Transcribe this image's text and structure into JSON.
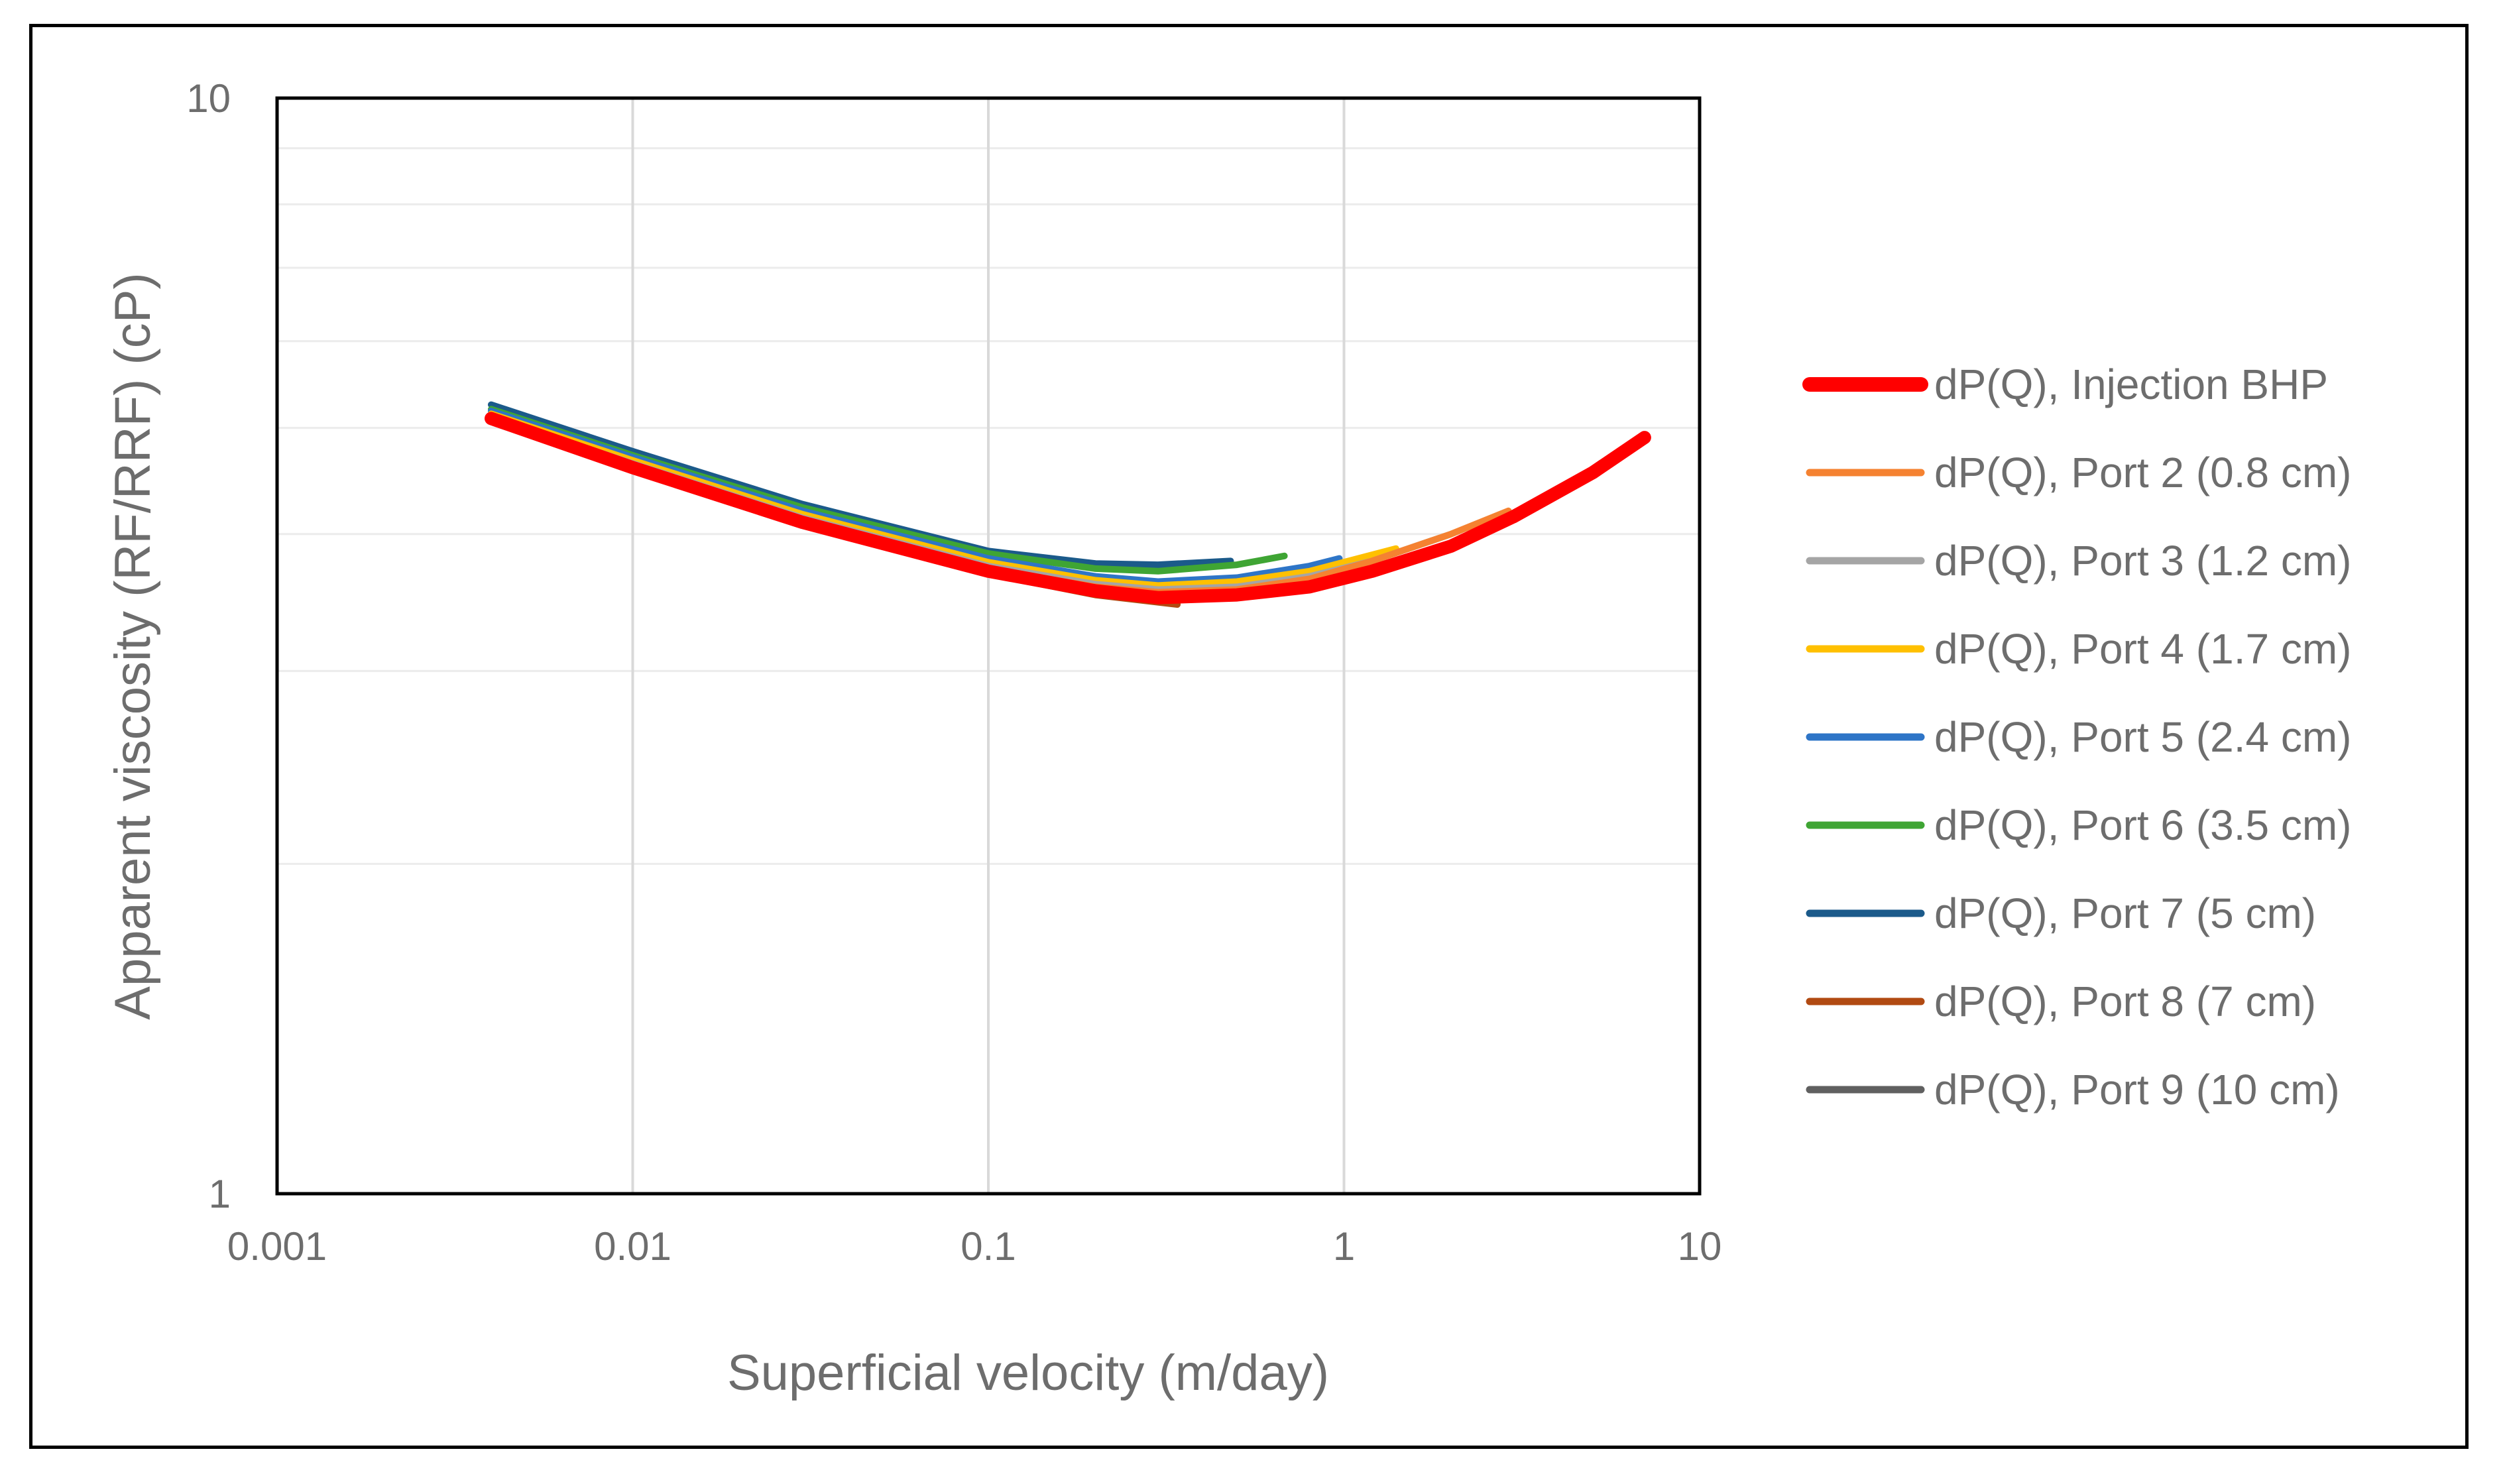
{
  "chart_data": {
    "type": "line",
    "title": "",
    "xlabel": "Superficial velocity (m/day)",
    "ylabel": "Apparent viscosity (RF/RRF) (cP)",
    "xscale": "log",
    "yscale": "log",
    "xlim": [
      0.001,
      10
    ],
    "ylim": [
      1,
      10
    ],
    "x_ticks": [
      0.001,
      0.01,
      0.1,
      1,
      10
    ],
    "x_tick_labels": [
      "0.001",
      "0.01",
      "0.1",
      "1",
      "10"
    ],
    "y_ticks": [
      1,
      10
    ],
    "y_tick_labels": [
      "1",
      "10"
    ],
    "y_minor_gridlines": [
      2,
      3,
      4,
      5,
      6,
      7,
      8,
      9
    ],
    "grid": true,
    "legend_position": "right",
    "series": [
      {
        "name": "dP(Q), Injection BHP",
        "color": "#ff0000",
        "width": "heavy",
        "x": [
          0.004,
          0.01,
          0.03,
          0.1,
          0.2,
          0.3,
          0.5,
          0.8,
          1.2,
          2,
          3,
          5,
          7
        ],
        "y": [
          5.1,
          4.6,
          4.1,
          3.7,
          3.55,
          3.5,
          3.52,
          3.58,
          3.7,
          3.9,
          4.15,
          4.55,
          4.9
        ]
      },
      {
        "name": "dP(Q), Port 2 (0.8 cm)",
        "color": "#f58231",
        "width": "normal",
        "x": [
          0.004,
          0.01,
          0.03,
          0.1,
          0.2,
          0.3,
          0.5,
          0.8,
          1.2,
          2,
          2.9
        ],
        "y": [
          5.1,
          4.62,
          4.12,
          3.72,
          3.58,
          3.54,
          3.56,
          3.64,
          3.78,
          4.0,
          4.2
        ]
      },
      {
        "name": "dP(Q), Port 3 (1.2 cm)",
        "color": "#a5a5a5",
        "width": "normal",
        "x": [
          0.004,
          0.01,
          0.03,
          0.1,
          0.2,
          0.3,
          0.5,
          0.8,
          1.2,
          2.0
        ],
        "y": [
          5.12,
          4.64,
          4.14,
          3.74,
          3.6,
          3.56,
          3.58,
          3.66,
          3.78,
          4.0
        ]
      },
      {
        "name": "dP(Q), Port 4 (1.7 cm)",
        "color": "#ffc000",
        "width": "normal",
        "x": [
          0.004,
          0.01,
          0.03,
          0.1,
          0.2,
          0.3,
          0.5,
          0.8,
          1.4
        ],
        "y": [
          5.15,
          4.67,
          4.17,
          3.77,
          3.63,
          3.59,
          3.62,
          3.7,
          3.88
        ]
      },
      {
        "name": "dP(Q), Port 5 (2.4 cm)",
        "color": "#2e75c7",
        "width": "normal",
        "x": [
          0.004,
          0.01,
          0.03,
          0.1,
          0.2,
          0.3,
          0.5,
          0.8,
          0.97
        ],
        "y": [
          5.18,
          4.7,
          4.2,
          3.8,
          3.66,
          3.62,
          3.65,
          3.74,
          3.8
        ]
      },
      {
        "name": "dP(Q), Port 6 (3.5 cm)",
        "color": "#3fa534",
        "width": "normal",
        "x": [
          0.004,
          0.01,
          0.03,
          0.1,
          0.2,
          0.3,
          0.5,
          0.68
        ],
        "y": [
          5.2,
          4.72,
          4.23,
          3.84,
          3.72,
          3.7,
          3.75,
          3.82
        ]
      },
      {
        "name": "dP(Q), Port 7 (5 cm)",
        "color": "#1b5a8a",
        "width": "normal",
        "x": [
          0.004,
          0.01,
          0.03,
          0.1,
          0.2,
          0.3,
          0.48
        ],
        "y": [
          5.25,
          4.76,
          4.26,
          3.86,
          3.76,
          3.75,
          3.78
        ]
      },
      {
        "name": "dP(Q), Port 8 (7 cm)",
        "color": "#b14a12",
        "width": "normal",
        "x": [
          0.004,
          0.01,
          0.03,
          0.1,
          0.2,
          0.34
        ],
        "y": [
          5.1,
          4.6,
          4.09,
          3.68,
          3.52,
          3.45
        ]
      },
      {
        "name": "dP(Q), Port 9 (10 cm)",
        "color": "#606060",
        "width": "normal",
        "x": [
          0.004,
          0.01,
          0.03,
          0.1,
          0.23
        ],
        "y": [
          5.07,
          4.58,
          4.08,
          3.68,
          3.52
        ]
      }
    ]
  }
}
